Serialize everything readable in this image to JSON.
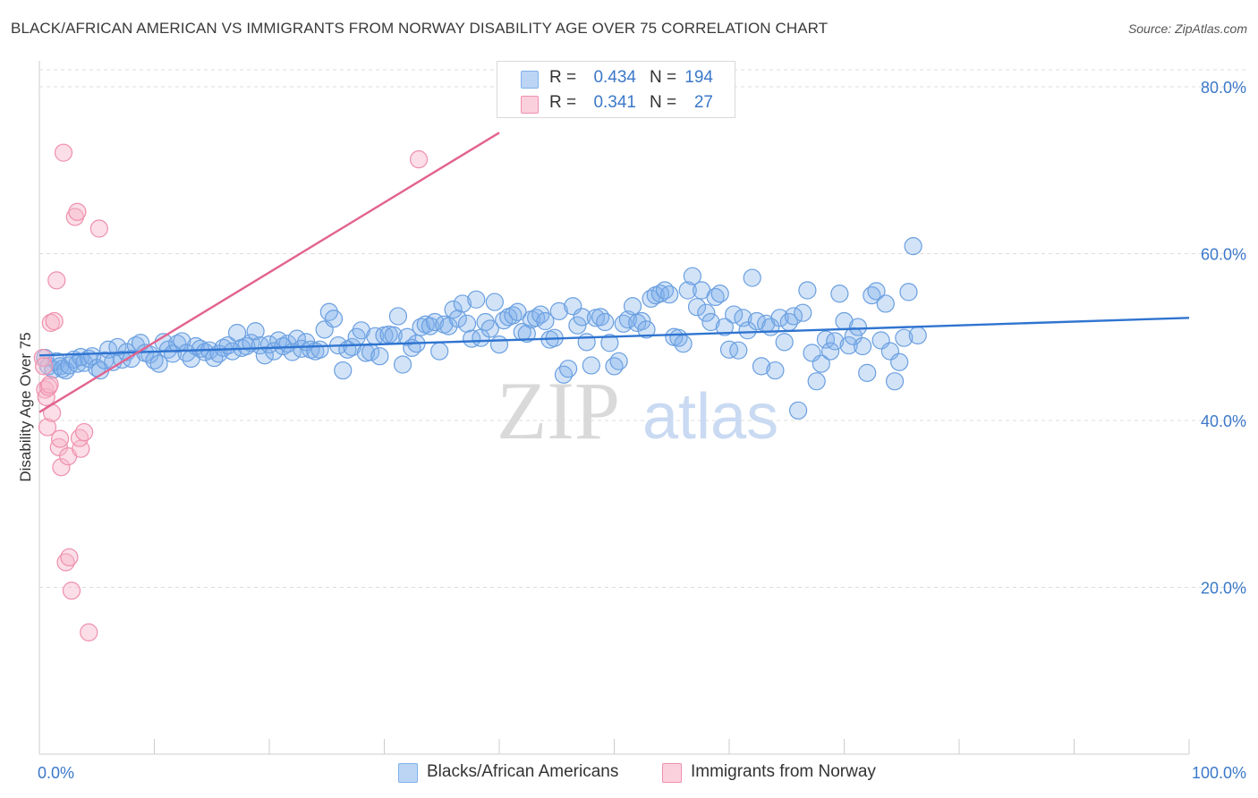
{
  "title": "BLACK/AFRICAN AMERICAN VS IMMIGRANTS FROM NORWAY DISABILITY AGE OVER 75 CORRELATION CHART",
  "source": "Source: ZipAtlas.com",
  "watermark": {
    "zip": "ZIP",
    "atlas": "atlas"
  },
  "legend": {
    "rows": [
      {
        "r_label": "R =",
        "r_value": "0.434",
        "n_label": "N =",
        "n_value": "194",
        "color": "#a9c8f0"
      },
      {
        "r_label": "R =",
        "r_value": "0.341",
        "n_label": "N =",
        "n_value": "27",
        "color": "#f7b6c9"
      }
    ]
  },
  "bottom_legend": {
    "series1": "Blacks/African Americans",
    "series2": "Immigrants from Norway"
  },
  "chart_data": {
    "type": "scatter",
    "title": "BLACK/AFRICAN AMERICAN VS IMMIGRANTS FROM NORWAY DISABILITY AGE OVER 75 CORRELATION CHART",
    "xlabel": "",
    "ylabel": "Disability Age Over 75",
    "xlim": [
      0,
      100
    ],
    "ylim": [
      0,
      85
    ],
    "x_tick_labels": [
      {
        "value": 0,
        "label": "0.0%"
      },
      {
        "value": 100,
        "label": "100.0%"
      }
    ],
    "y_tick_labels": [
      {
        "value": 20,
        "label": "20.0%"
      },
      {
        "value": 40,
        "label": "40.0%"
      },
      {
        "value": 60,
        "label": "60.0%"
      },
      {
        "value": 80,
        "label": "80.0%"
      }
    ],
    "series": [
      {
        "name": "Blacks/African Americans",
        "color": "#7fb0ea",
        "stroke": "#6a9fe0",
        "trendline": {
          "x": [
            0,
            100
          ],
          "y": [
            47.8,
            52.3
          ],
          "color": "#2f74d0"
        },
        "points": [
          [
            0.5,
            47.5
          ],
          [
            0.8,
            46.5
          ],
          [
            1.2,
            46.1
          ],
          [
            1.5,
            47.1
          ],
          [
            1.8,
            46.5
          ],
          [
            2.0,
            46.2
          ],
          [
            2.3,
            46.0
          ],
          [
            2.6,
            46.6
          ],
          [
            3.0,
            47.3
          ],
          [
            3.3,
            46.8
          ],
          [
            3.6,
            47.6
          ],
          [
            3.9,
            46.9
          ],
          [
            4.3,
            47.4
          ],
          [
            4.6,
            47.7
          ],
          [
            5.0,
            46.3
          ],
          [
            5.3,
            46.0
          ],
          [
            5.7,
            47.2
          ],
          [
            6.0,
            48.5
          ],
          [
            6.4,
            47.0
          ],
          [
            6.8,
            48.8
          ],
          [
            7.2,
            47.3
          ],
          [
            7.6,
            48.2
          ],
          [
            8.0,
            47.4
          ],
          [
            8.4,
            49.0
          ],
          [
            8.8,
            49.3
          ],
          [
            9.2,
            48.1
          ],
          [
            9.6,
            47.9
          ],
          [
            10.0,
            47.2
          ],
          [
            10.4,
            46.8
          ],
          [
            10.8,
            49.4
          ],
          [
            11.2,
            48.5
          ],
          [
            11.6,
            48.0
          ],
          [
            12.0,
            49.2
          ],
          [
            12.4,
            49.5
          ],
          [
            12.8,
            48.1
          ],
          [
            13.2,
            47.4
          ],
          [
            13.6,
            48.9
          ],
          [
            14.0,
            48.6
          ],
          [
            14.4,
            48.2
          ],
          [
            14.8,
            48.4
          ],
          [
            15.2,
            47.5
          ],
          [
            15.6,
            48.0
          ],
          [
            16.0,
            48.7
          ],
          [
            16.4,
            49.0
          ],
          [
            16.8,
            48.3
          ],
          [
            17.2,
            50.5
          ],
          [
            17.6,
            48.7
          ],
          [
            18.0,
            48.9
          ],
          [
            18.4,
            49.3
          ],
          [
            18.8,
            50.7
          ],
          [
            19.2,
            49.0
          ],
          [
            19.6,
            47.8
          ],
          [
            20.0,
            49.1
          ],
          [
            20.4,
            48.3
          ],
          [
            20.8,
            49.6
          ],
          [
            21.2,
            48.9
          ],
          [
            21.6,
            49.2
          ],
          [
            22.0,
            48.2
          ],
          [
            22.4,
            49.8
          ],
          [
            22.8,
            48.6
          ],
          [
            23.2,
            49.4
          ],
          [
            23.6,
            48.5
          ],
          [
            24.0,
            48.3
          ],
          [
            24.4,
            48.5
          ],
          [
            24.8,
            50.9
          ],
          [
            25.2,
            53.0
          ],
          [
            25.6,
            52.2
          ],
          [
            26.0,
            49.0
          ],
          [
            26.4,
            46.0
          ],
          [
            26.8,
            48.5
          ],
          [
            27.2,
            48.8
          ],
          [
            27.6,
            50.0
          ],
          [
            28.0,
            50.8
          ],
          [
            28.4,
            48.1
          ],
          [
            28.8,
            48.2
          ],
          [
            29.2,
            50.1
          ],
          [
            29.6,
            47.7
          ],
          [
            30.0,
            50.2
          ],
          [
            30.4,
            50.3
          ],
          [
            30.8,
            50.2
          ],
          [
            31.2,
            52.5
          ],
          [
            31.6,
            46.7
          ],
          [
            32.0,
            50.0
          ],
          [
            32.4,
            48.7
          ],
          [
            32.8,
            49.2
          ],
          [
            33.2,
            51.2
          ],
          [
            33.6,
            51.5
          ],
          [
            34.0,
            51.3
          ],
          [
            34.4,
            51.8
          ],
          [
            34.8,
            48.3
          ],
          [
            35.2,
            51.5
          ],
          [
            35.6,
            51.3
          ],
          [
            36.0,
            53.3
          ],
          [
            36.4,
            52.2
          ],
          [
            36.8,
            54.0
          ],
          [
            37.2,
            51.6
          ],
          [
            37.6,
            49.8
          ],
          [
            38.0,
            54.5
          ],
          [
            38.4,
            49.9
          ],
          [
            38.8,
            51.8
          ],
          [
            39.2,
            51.0
          ],
          [
            39.6,
            54.2
          ],
          [
            40.0,
            49.1
          ],
          [
            40.4,
            52.0
          ],
          [
            40.8,
            52.4
          ],
          [
            41.2,
            52.6
          ],
          [
            41.6,
            53.0
          ],
          [
            42.0,
            50.6
          ],
          [
            42.4,
            50.4
          ],
          [
            42.8,
            52.1
          ],
          [
            43.2,
            52.3
          ],
          [
            43.6,
            52.7
          ],
          [
            44.0,
            51.9
          ],
          [
            44.4,
            49.7
          ],
          [
            44.8,
            49.9
          ],
          [
            45.2,
            53.1
          ],
          [
            45.6,
            45.5
          ],
          [
            46.0,
            46.2
          ],
          [
            46.4,
            53.7
          ],
          [
            46.8,
            51.4
          ],
          [
            47.2,
            52.4
          ],
          [
            47.6,
            49.4
          ],
          [
            48.0,
            46.6
          ],
          [
            48.4,
            52.3
          ],
          [
            48.8,
            52.4
          ],
          [
            49.2,
            51.8
          ],
          [
            49.6,
            49.3
          ],
          [
            50.0,
            46.5
          ],
          [
            50.4,
            47.1
          ],
          [
            50.8,
            51.6
          ],
          [
            51.2,
            52.1
          ],
          [
            51.6,
            53.7
          ],
          [
            52.0,
            51.7
          ],
          [
            52.4,
            51.9
          ],
          [
            52.8,
            50.9
          ],
          [
            53.2,
            54.6
          ],
          [
            53.6,
            55.0
          ],
          [
            54.0,
            55.2
          ],
          [
            54.4,
            55.6
          ],
          [
            54.8,
            55.1
          ],
          [
            55.2,
            50.0
          ],
          [
            55.6,
            49.9
          ],
          [
            56.0,
            49.2
          ],
          [
            56.4,
            55.6
          ],
          [
            56.8,
            57.3
          ],
          [
            57.2,
            53.6
          ],
          [
            57.6,
            55.6
          ],
          [
            58.0,
            52.9
          ],
          [
            58.4,
            51.8
          ],
          [
            58.8,
            54.8
          ],
          [
            59.2,
            55.2
          ],
          [
            59.6,
            51.2
          ],
          [
            60.0,
            48.5
          ],
          [
            60.4,
            52.7
          ],
          [
            60.8,
            48.4
          ],
          [
            61.2,
            52.3
          ],
          [
            61.6,
            50.8
          ],
          [
            62.0,
            57.1
          ],
          [
            62.4,
            51.9
          ],
          [
            62.8,
            46.5
          ],
          [
            63.2,
            51.6
          ],
          [
            63.6,
            51.2
          ],
          [
            64.0,
            46.0
          ],
          [
            64.4,
            52.3
          ],
          [
            64.8,
            49.4
          ],
          [
            65.2,
            51.8
          ],
          [
            65.6,
            52.5
          ],
          [
            66.0,
            41.2
          ],
          [
            66.4,
            52.9
          ],
          [
            66.8,
            55.6
          ],
          [
            67.2,
            48.1
          ],
          [
            67.6,
            44.7
          ],
          [
            68.0,
            46.8
          ],
          [
            68.4,
            49.7
          ],
          [
            68.8,
            48.3
          ],
          [
            69.2,
            49.5
          ],
          [
            69.6,
            55.2
          ],
          [
            70.0,
            51.9
          ],
          [
            70.4,
            49.0
          ],
          [
            70.8,
            50.1
          ],
          [
            71.2,
            51.2
          ],
          [
            71.6,
            48.9
          ],
          [
            72.0,
            45.7
          ],
          [
            72.4,
            55.0
          ],
          [
            72.8,
            55.5
          ],
          [
            73.2,
            49.6
          ],
          [
            73.6,
            54.0
          ],
          [
            74.0,
            48.3
          ],
          [
            74.4,
            44.7
          ],
          [
            74.8,
            47.0
          ],
          [
            75.2,
            49.9
          ],
          [
            75.6,
            55.4
          ],
          [
            76.0,
            60.9
          ],
          [
            76.4,
            50.2
          ]
        ]
      },
      {
        "name": "Immigrants from Norway",
        "color": "#f7b6c9",
        "stroke": "#ef8fac",
        "trendline": {
          "x": [
            0,
            40
          ],
          "y": [
            41.0,
            74.5
          ],
          "color": "#e2638e"
        },
        "points": [
          [
            0.3,
            47.5
          ],
          [
            0.4,
            46.5
          ],
          [
            0.5,
            43.7
          ],
          [
            0.6,
            42.8
          ],
          [
            0.7,
            39.2
          ],
          [
            0.8,
            44.0
          ],
          [
            0.9,
            44.3
          ],
          [
            1.0,
            51.7
          ],
          [
            1.1,
            40.9
          ],
          [
            1.3,
            51.9
          ],
          [
            1.5,
            56.8
          ],
          [
            1.7,
            36.8
          ],
          [
            1.8,
            37.8
          ],
          [
            1.9,
            34.4
          ],
          [
            2.1,
            72.1
          ],
          [
            2.3,
            23.0
          ],
          [
            2.5,
            35.7
          ],
          [
            2.6,
            23.6
          ],
          [
            2.8,
            19.6
          ],
          [
            3.1,
            64.4
          ],
          [
            3.3,
            65.0
          ],
          [
            3.6,
            36.6
          ],
          [
            3.5,
            37.9
          ],
          [
            3.9,
            38.6
          ],
          [
            4.3,
            14.6
          ],
          [
            5.2,
            63.0
          ],
          [
            33.0,
            71.3
          ]
        ]
      }
    ]
  }
}
